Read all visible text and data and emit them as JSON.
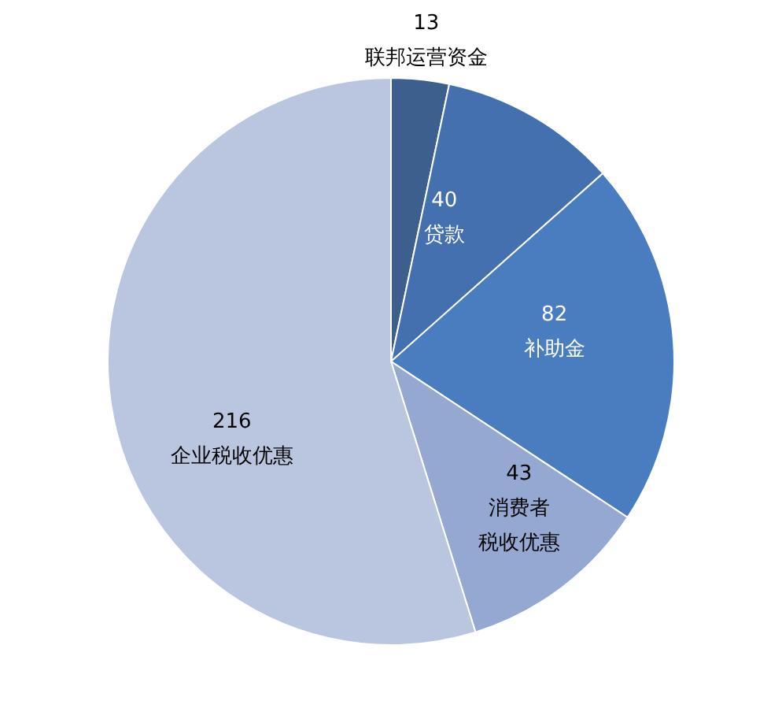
{
  "chart_data": {
    "type": "pie",
    "categories": [
      "联邦运营资金",
      "贷款",
      "补助金",
      "消费者税收优惠",
      "企业税收优惠"
    ],
    "values": [
      13,
      40,
      82,
      43,
      216
    ],
    "colors": [
      "#3d5f8e",
      "#4470b0",
      "#4a7cc0",
      "#94a8d2",
      "#bac6e0"
    ],
    "data_labels": true,
    "legend": false
  }
}
